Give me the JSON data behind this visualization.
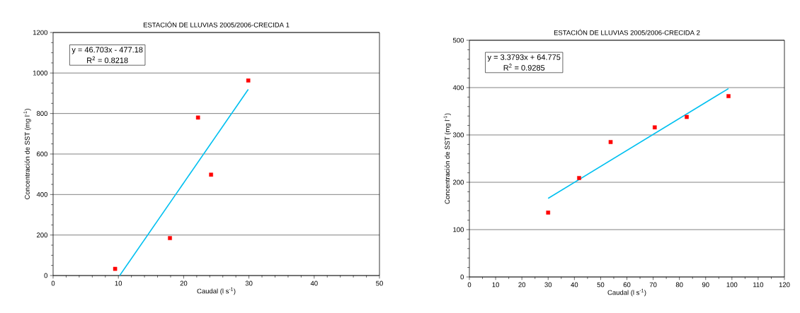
{
  "chart_data": [
    {
      "type": "scatter",
      "title": "ESTACIÓN DE LLUVIAS 2005/2006-CRECIDA 1",
      "xlabel": "Caudal (l s$^{-1}$)",
      "ylabel": "Concentración de SST (mg l$^{-1}$)",
      "xlim": [
        0,
        50
      ],
      "xticks": [
        0,
        10,
        20,
        30,
        40,
        50
      ],
      "ylim": [
        0,
        1200
      ],
      "yticks": [
        0,
        200,
        400,
        600,
        800,
        1000,
        1200
      ],
      "grid": "y",
      "series": [
        {
          "marker": "square",
          "color": "#ff0000",
          "x": [
            9.5,
            17.9,
            22.2,
            24.2,
            29.9
          ],
          "values": [
            33,
            185,
            780,
            498,
            963
          ]
        },
        {
          "type": "line",
          "marker": "none",
          "color": "#00c0f0",
          "x": [
            10.2,
            29.9
          ],
          "values": [
            0,
            919
          ]
        }
      ],
      "annotations": [
        "y = 46.703x - 477.18",
        "R$^{2}$ = 0.8218"
      ]
    },
    {
      "type": "scatter",
      "title": "ESTACIÓN DE LLUVIAS 2005/2006-CRECIDA 2",
      "xlabel": "Caudal (l s$^{-1}$)",
      "ylabel": "Concentración de SST (mg l$^{-1}$)",
      "xlim": [
        0,
        120
      ],
      "xticks": [
        0,
        10,
        20,
        30,
        40,
        50,
        60,
        70,
        80,
        90,
        100,
        110,
        120
      ],
      "ylim": [
        0,
        500
      ],
      "yticks": [
        0,
        100,
        200,
        300,
        400,
        500
      ],
      "grid": "y",
      "series": [
        {
          "marker": "square",
          "color": "#ff0000",
          "x": [
            30,
            41.8,
            53.8,
            70.6,
            82.8,
            98.7
          ],
          "values": [
            136,
            209,
            285,
            316,
            338,
            382
          ]
        },
        {
          "type": "line",
          "marker": "none",
          "color": "#00c0f0",
          "x": [
            30,
            98.7
          ],
          "values": [
            166,
            398
          ]
        }
      ],
      "annotations": [
        "y = 3.3793x + 64.775",
        "R$^{2}$ = 0.9285"
      ]
    }
  ]
}
